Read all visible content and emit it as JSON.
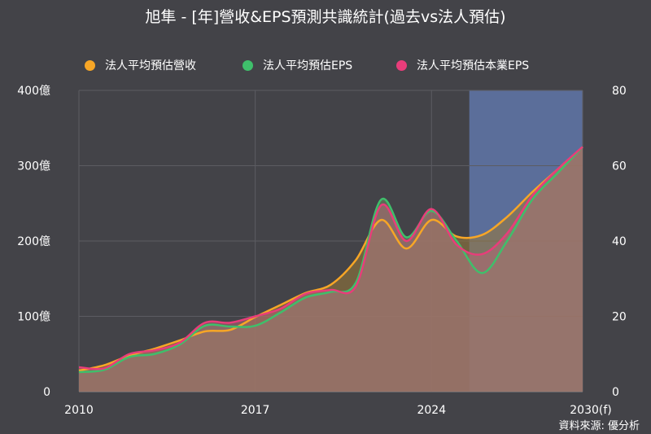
{
  "chart_data": {
    "type": "area",
    "title": "旭隼 - [年]營收&EPS預測共識統計(過去vs法人預估)",
    "x_ticks": [
      "2010",
      "2017",
      "2024",
      "2030(f)"
    ],
    "forecast_shade": {
      "from": 2025.5,
      "to": 2030,
      "color": "#5b6e9a"
    },
    "y_left": {
      "range": [
        0,
        400
      ],
      "unit": "億",
      "ticks": [
        "0",
        "100億",
        "200億",
        "300億",
        "400億"
      ]
    },
    "y_right": {
      "range": [
        0,
        80
      ],
      "ticks": [
        "0",
        "20",
        "40",
        "60",
        "80"
      ]
    },
    "series": [
      {
        "name": "法人平均預估營收",
        "color": "#f7a626",
        "axis": "left",
        "x": [
          2010,
          2011,
          2012,
          2013,
          2014,
          2015,
          2016,
          2017,
          2018,
          2019,
          2020,
          2021,
          2022,
          2023,
          2024,
          2025,
          2026,
          2027,
          2028,
          2029,
          2030
        ],
        "values": [
          28,
          35,
          48,
          57,
          68,
          80,
          82,
          99,
          115,
          131,
          142,
          175,
          228,
          190,
          228,
          206,
          208,
          232,
          265,
          295,
          325
        ]
      },
      {
        "name": "法人平均預估EPS",
        "color": "#3fbf6b",
        "axis": "right",
        "x": [
          2010,
          2011,
          2012,
          2013,
          2014,
          2015,
          2016,
          2017,
          2018,
          2019,
          2020,
          2021,
          2022,
          2023,
          2024,
          2025,
          2026,
          2027,
          2028,
          2029,
          2030
        ],
        "values": [
          5.2,
          5.8,
          9.2,
          10,
          12.5,
          17.5,
          17.3,
          17.5,
          21,
          25,
          26.5,
          29,
          51,
          41,
          48,
          40,
          31.5,
          40,
          51,
          58,
          65
        ]
      },
      {
        "name": "法人平均預估本業EPS",
        "color": "#e83d7a",
        "axis": "right",
        "x": [
          2010,
          2011,
          2012,
          2013,
          2014,
          2015,
          2016,
          2017,
          2018,
          2019,
          2020,
          2021,
          2022,
          2023,
          2024,
          2025,
          2026,
          2027,
          2028,
          2029,
          2030
        ],
        "values": [
          6.5,
          6.2,
          10,
          11,
          13,
          18.3,
          18.3,
          20,
          22,
          26,
          27,
          28,
          49.5,
          40,
          48.5,
          39,
          36.5,
          42,
          52,
          59,
          65
        ]
      }
    ],
    "grid": true,
    "legend": "top-center"
  },
  "credit": "資料來源: 優分析"
}
